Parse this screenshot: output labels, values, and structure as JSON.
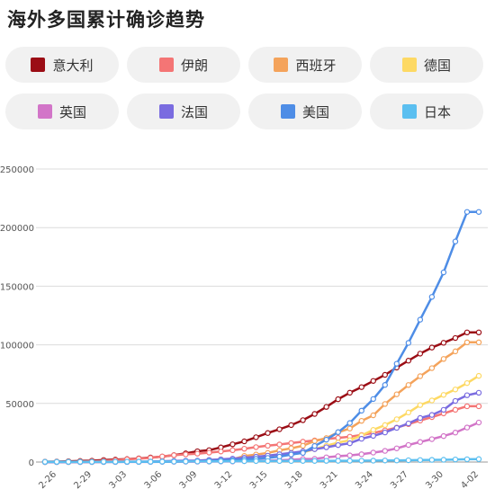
{
  "title": "海外多国累计确诊趋势",
  "chart_data": {
    "type": "line",
    "title": "海外多国累计确诊趋势",
    "xlabel": "",
    "ylabel": "",
    "ylim": [
      0,
      250000
    ],
    "yticks": [
      "0",
      "50000",
      "100000",
      "150000",
      "200000",
      "250000"
    ],
    "x": [
      "2-25",
      "2-26",
      "2-27",
      "2-28",
      "2-29",
      "3-01",
      "3-02",
      "3-03",
      "3-04",
      "3-05",
      "3-06",
      "3-07",
      "3-08",
      "3-09",
      "3-10",
      "3-11",
      "3-12",
      "3-13",
      "3-14",
      "3-15",
      "3-16",
      "3-17",
      "3-18",
      "3-19",
      "3-20",
      "3-21",
      "3-22",
      "3-23",
      "3-24",
      "3-25",
      "3-26",
      "3-27",
      "3-28",
      "3-29",
      "3-30",
      "3-31",
      "4-01",
      "4-02"
    ],
    "xtick_labels": [
      "2-26",
      "2-29",
      "3-03",
      "3-06",
      "3-09",
      "3-12",
      "3-15",
      "3-18",
      "3-21",
      "3-24",
      "3-27",
      "3-30",
      "4-02"
    ],
    "grid": true,
    "legend_position": "top",
    "series": [
      {
        "name": "意大利",
        "color": "#9b0d15",
        "values": [
          322,
          400,
          650,
          888,
          1128,
          1694,
          2036,
          2502,
          3089,
          3858,
          4636,
          5883,
          7375,
          9172,
          10149,
          12462,
          15113,
          17660,
          21157,
          24747,
          27980,
          31506,
          35713,
          41035,
          47021,
          53578,
          59138,
          63927,
          69176,
          74386,
          80589,
          86498,
          92472,
          97689,
          101739,
          105792,
          110574,
          110574
        ]
      },
      {
        "name": "伊朗",
        "color": "#f47575",
        "values": [
          95,
          139,
          245,
          388,
          593,
          978,
          1501,
          2336,
          2922,
          3513,
          4747,
          5823,
          6566,
          7161,
          8042,
          9000,
          10075,
          11364,
          12729,
          13938,
          14991,
          16169,
          17361,
          18407,
          19644,
          20610,
          21638,
          23049,
          24811,
          27017,
          29406,
          32332,
          35408,
          38309,
          41495,
          44605,
          47593,
          47593
        ]
      },
      {
        "name": "西班牙",
        "color": "#f4a35b",
        "values": [
          6,
          13,
          15,
          32,
          45,
          84,
          120,
          165,
          222,
          259,
          400,
          500,
          673,
          1073,
          1695,
          2277,
          2277,
          5232,
          6391,
          7798,
          9942,
          11748,
          13910,
          17963,
          20410,
          25374,
          28603,
          35136,
          39885,
          49515,
          57786,
          65719,
          73235,
          80110,
          87956,
          94417,
          102136,
          102136
        ]
      },
      {
        "name": "德国",
        "color": "#fdd964",
        "values": [
          16,
          18,
          26,
          53,
          66,
          117,
          150,
          188,
          240,
          349,
          534,
          684,
          847,
          1112,
          1296,
          1567,
          2369,
          3062,
          3795,
          4838,
          6012,
          7156,
          8198,
          10999,
          13957,
          16662,
          18610,
          22672,
          27436,
          31554,
          36508,
          42288,
          48582,
          52547,
          57298,
          61913,
          67366,
          73522
        ]
      },
      {
        "name": "英国",
        "color": "#d275c8",
        "values": [
          13,
          13,
          15,
          20,
          23,
          36,
          40,
          51,
          85,
          115,
          163,
          206,
          273,
          321,
          382,
          456,
          456,
          798,
          1140,
          1140,
          1543,
          1950,
          2626,
          2689,
          3983,
          5018,
          5683,
          6650,
          8077,
          9529,
          11658,
          14543,
          17089,
          19522,
          22141,
          25150,
          29474,
          33718
        ]
      },
      {
        "name": "法国",
        "color": "#7a6ce0",
        "values": [
          14,
          18,
          38,
          57,
          100,
          130,
          191,
          212,
          285,
          423,
          653,
          949,
          1126,
          1209,
          1784,
          2281,
          2876,
          3661,
          4499,
          5423,
          6633,
          7730,
          9134,
          10995,
          12612,
          14459,
          16018,
          19856,
          22302,
          25233,
          29155,
          32964,
          37575,
          40174,
          44550,
          52128,
          56989,
          59105
        ]
      },
      {
        "name": "美国",
        "color": "#4e8de6",
        "values": [
          53,
          57,
          60,
          60,
          62,
          74,
          98,
          118,
          149,
          217,
          262,
          402,
          518,
          583,
          959,
          1281,
          1663,
          2179,
          2726,
          3499,
          4632,
          6421,
          7786,
          13680,
          19101,
          25493,
          33276,
          43847,
          53740,
          65778,
          83836,
          101657,
          121478,
          140886,
          161807,
          188172,
          213372,
          213372
        ]
      },
      {
        "name": "日本",
        "color": "#5bbff0",
        "values": [
          159,
          170,
          189,
          214,
          228,
          241,
          256,
          274,
          293,
          331,
          360,
          420,
          461,
          502,
          530,
          639,
          701,
          773,
          839,
          825,
          878,
          889,
          924,
          963,
          1007,
          1046,
          1089,
          1128,
          1193,
          1307,
          1387,
          1499,
          1693,
          1866,
          1953,
          2178,
          2381,
          2495
        ]
      }
    ]
  }
}
